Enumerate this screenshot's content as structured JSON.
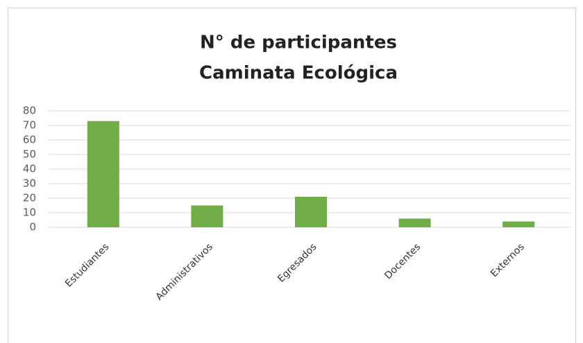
{
  "chart_data": {
    "type": "bar",
    "title": [
      "N° de participantes",
      "Caminata Ecológica"
    ],
    "categories": [
      "Estudiantes",
      "Administrativos",
      "Egresados",
      "Docentes",
      "Externos"
    ],
    "values": [
      73,
      15,
      21,
      6,
      4
    ],
    "color": "#70ad47",
    "ylim": [
      0,
      80
    ],
    "yticks": [
      0,
      10,
      20,
      30,
      40,
      50,
      60,
      70,
      80
    ],
    "grid": true
  }
}
